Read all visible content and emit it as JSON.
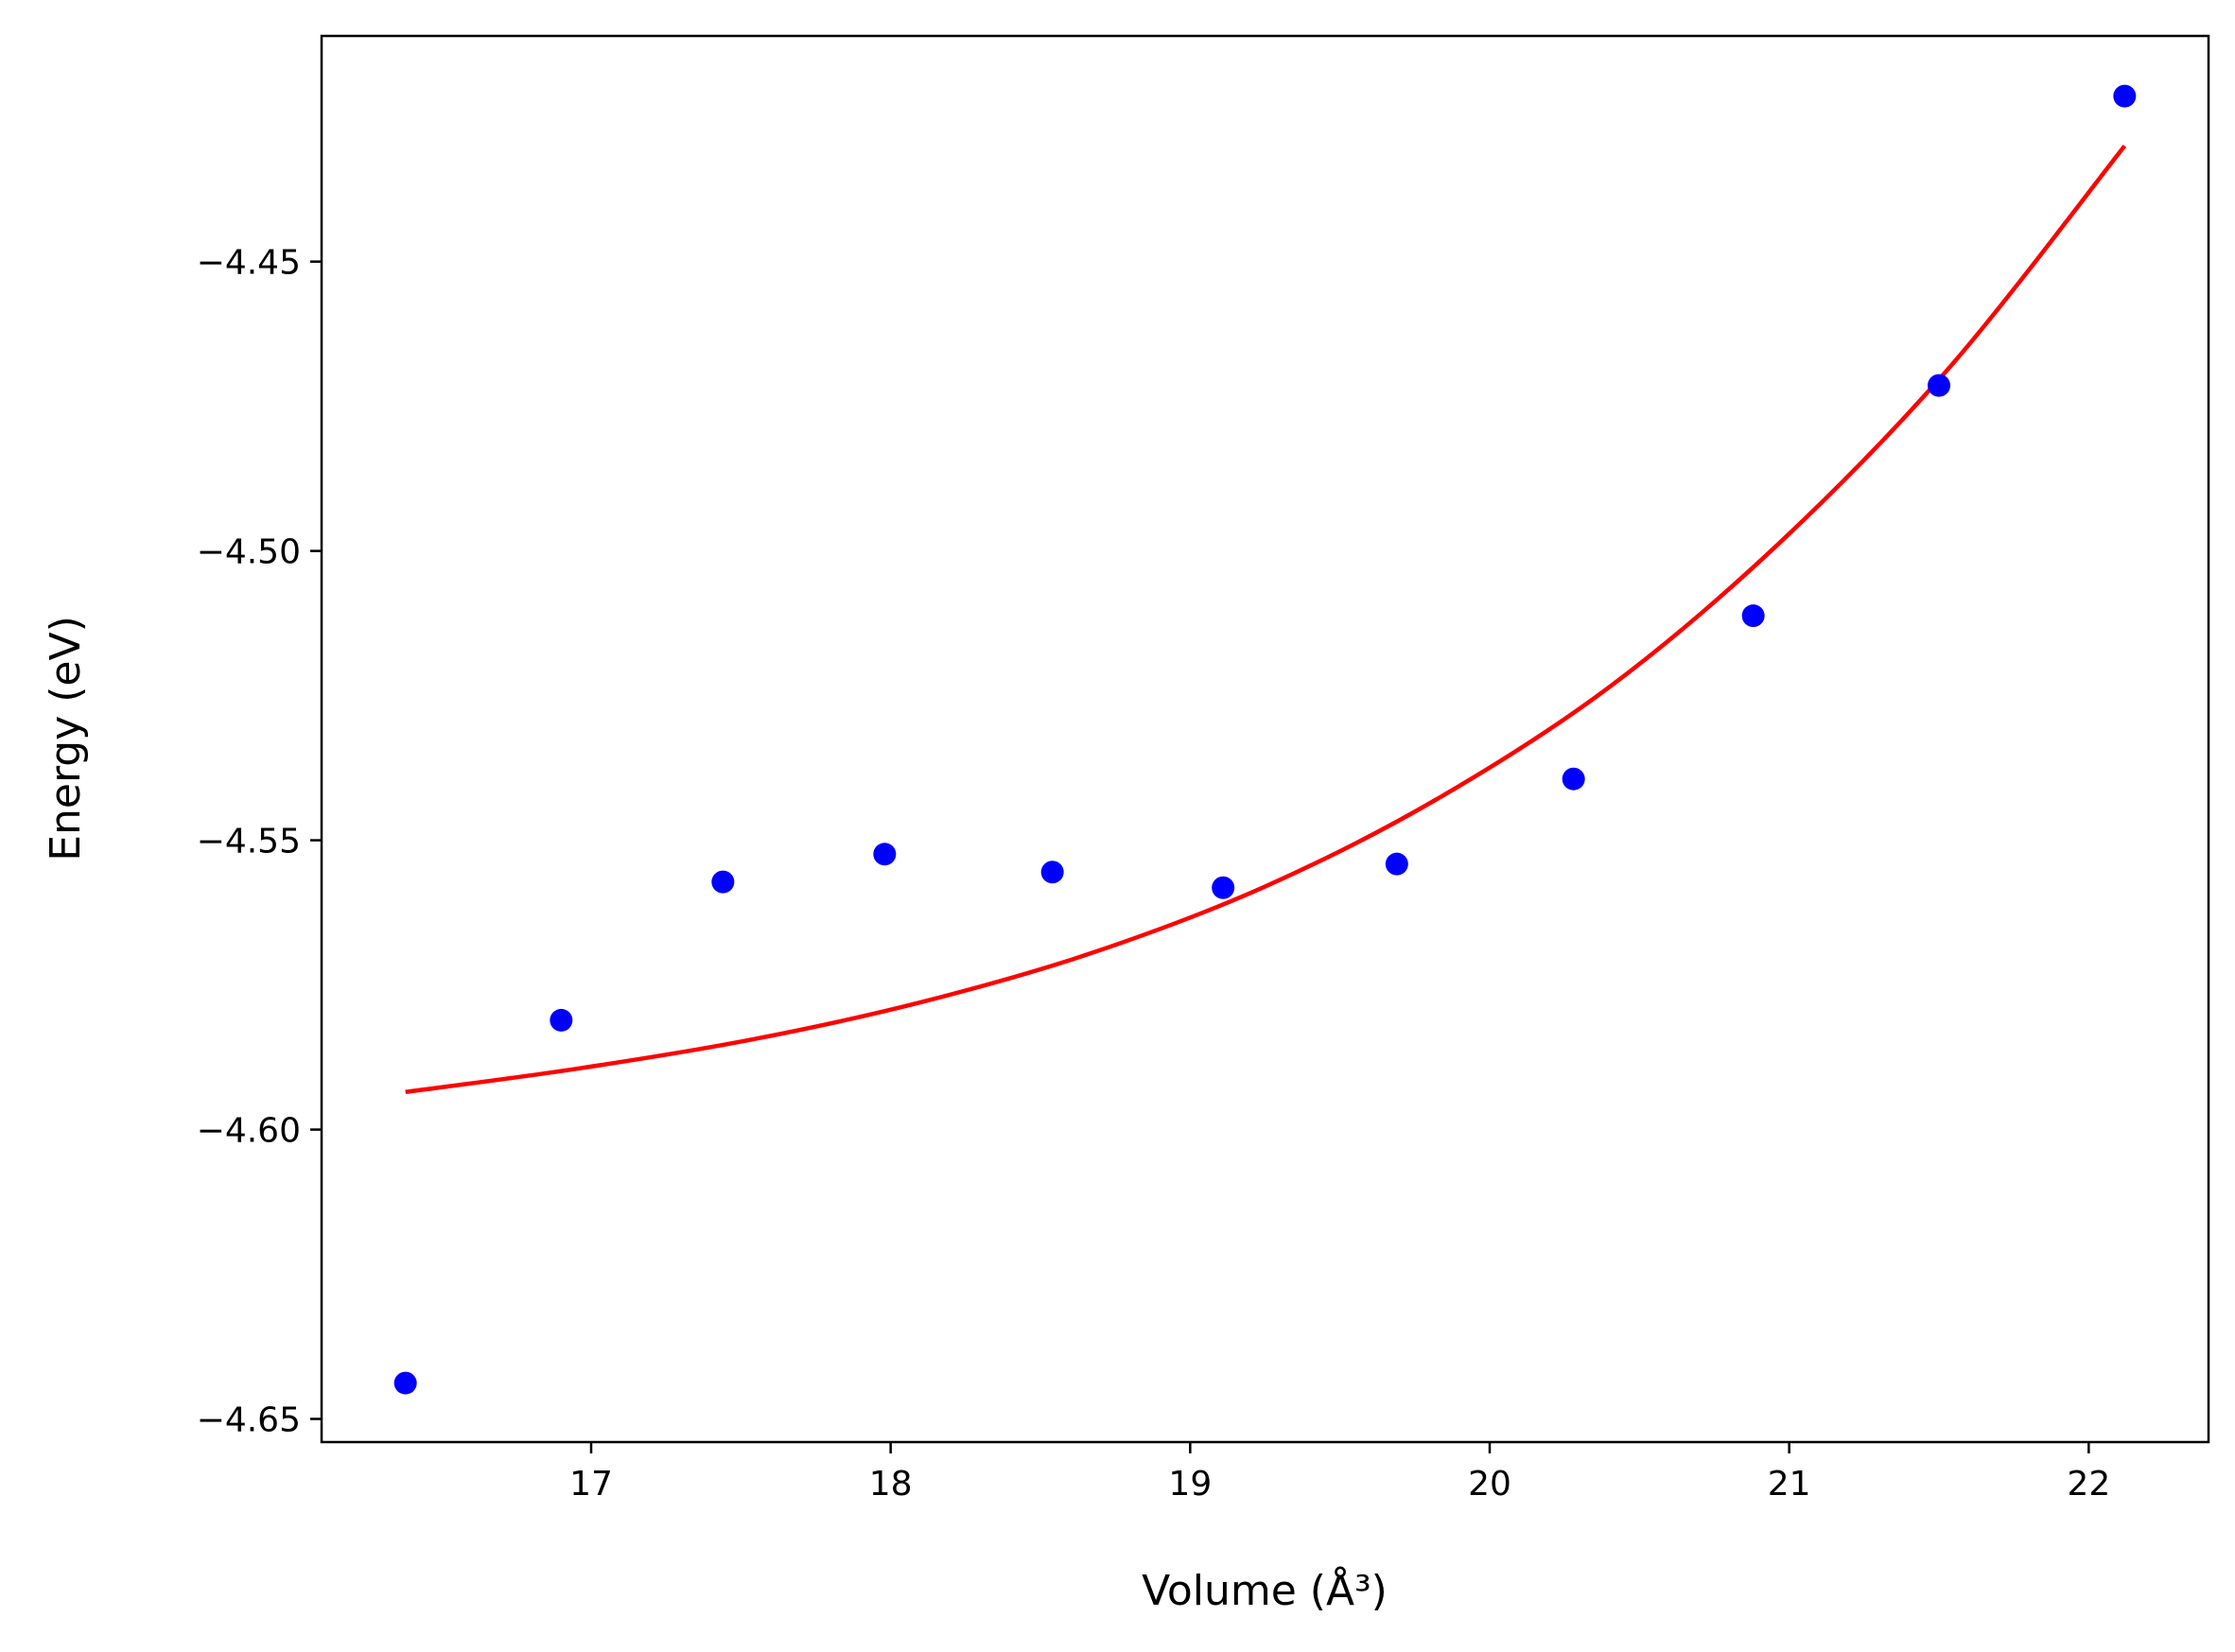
{
  "chart_data": {
    "type": "scatter",
    "title": "",
    "xlabel": "Volume (Å³)",
    "ylabel": "Energy (eV)",
    "xlim": [
      16.1,
      22.4
    ],
    "ylim": [
      -4.654,
      -4.411
    ],
    "grid": false,
    "x_ticks": [
      17,
      18,
      19,
      20,
      21,
      22
    ],
    "x_tick_labels": [
      "17",
      "18",
      "19",
      "20",
      "21",
      "22"
    ],
    "y_ticks": [
      -4.45,
      -4.5,
      -4.55,
      -4.6,
      -4.65
    ],
    "y_tick_labels": [
      "−4.45",
      "−4.50",
      "−4.55",
      "−4.60",
      "−4.65"
    ],
    "series": [
      {
        "kind": "points",
        "color": "#0000ff",
        "x": [
          16.38,
          16.9,
          17.44,
          17.98,
          18.54,
          19.11,
          19.69,
          20.28,
          20.88,
          21.5,
          22.12
        ],
        "y": [
          -4.6438,
          -4.5811,
          -4.5572,
          -4.5524,
          -4.5555,
          -4.5582,
          -4.5541,
          -4.5394,
          -4.5112,
          -4.4714,
          -4.4214
        ]
      },
      {
        "kind": "fit-line",
        "color": "#ff0000",
        "x": [
          16.38,
          16.95,
          17.53,
          18.1,
          18.67,
          19.25,
          19.82,
          20.4,
          20.97,
          21.54,
          22.12
        ],
        "y": [
          -4.5935,
          -4.5895,
          -4.5845,
          -4.578,
          -4.5695,
          -4.558,
          -4.543,
          -4.5235,
          -4.4985,
          -4.468,
          -4.43
        ]
      }
    ]
  }
}
